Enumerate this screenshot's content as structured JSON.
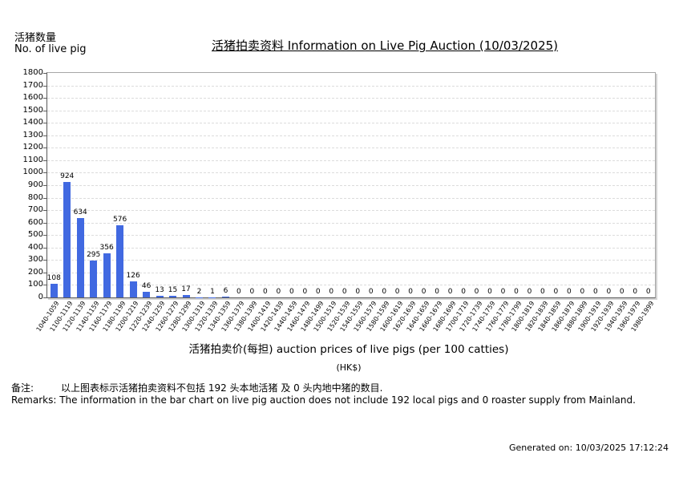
{
  "page": {
    "y_axis_label_zh": "活猪数量",
    "y_axis_label_en": "No. of live pig",
    "title": "活猪拍卖资料 Information on Live Pig Auction (10/03/2025)",
    "x_axis_title": "活猪拍卖价(每担) auction prices of live pigs (per 100 catties)",
    "x_axis_unit": "(HK$)",
    "remark_zh_label": "备注:",
    "remark_zh": "以上图表标示活猪拍卖资料不包括 192 头本地活猪 及 0 头内地中猪的数目.",
    "remark_en": "Remarks: The information in the bar chart on live pig auction does not include 192 local pigs and 0 roaster supply from Mainland.",
    "generated_on": "Generated on: 10/03/2025 17:12:24"
  },
  "chart_data": {
    "type": "bar",
    "title": "活猪拍卖资料 Information on Live Pig Auction (10/03/2025)",
    "xlabel": "活猪拍卖价(每担) auction prices of live pigs (per 100 catties) (HK$)",
    "ylabel": "活猪数量 No. of live pig",
    "ylim": [
      0,
      1800
    ],
    "ytick_step": 100,
    "grid": true,
    "legend": "none",
    "bar_color": "#4169E1",
    "categories": [
      "1040-1059",
      "1100-1119",
      "1120-1139",
      "1140-1159",
      "1160-1179",
      "1180-1199",
      "1200-1219",
      "1220-1239",
      "1240-1259",
      "1260-1279",
      "1280-1299",
      "1300-1319",
      "1320-1339",
      "1340-1359",
      "1360-1379",
      "1380-1399",
      "1400-1419",
      "1420-1439",
      "1440-1459",
      "1460-1479",
      "1480-1499",
      "1500-1519",
      "1520-1539",
      "1540-1559",
      "1560-1579",
      "1580-1599",
      "1600-1619",
      "1620-1639",
      "1640-1659",
      "1660-1679",
      "1680-1699",
      "1700-1719",
      "1720-1739",
      "1740-1759",
      "1760-1779",
      "1780-1799",
      "1800-1819",
      "1820-1839",
      "1840-1859",
      "1860-1879",
      "1880-1899",
      "1900-1919",
      "1920-1939",
      "1940-1959",
      "1960-1979",
      "1980-1999"
    ],
    "values": [
      108,
      924,
      634,
      295,
      356,
      576,
      126,
      46,
      13,
      15,
      17,
      2,
      1,
      6,
      0,
      0,
      0,
      0,
      0,
      0,
      0,
      0,
      0,
      0,
      0,
      0,
      0,
      0,
      0,
      0,
      0,
      0,
      0,
      0,
      0,
      0,
      0,
      0,
      0,
      0,
      0,
      0,
      0,
      0,
      0,
      0
    ]
  }
}
